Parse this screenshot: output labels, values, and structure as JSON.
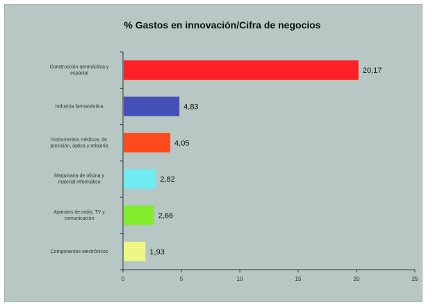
{
  "chart_data": {
    "type": "bar",
    "orientation": "horizontal",
    "title": "% Gastos en innovación/Cifra de negocios",
    "xlabel": "",
    "ylabel": "",
    "xlim": [
      0,
      25
    ],
    "xticks": [
      0,
      5,
      10,
      15,
      20,
      25
    ],
    "grid": false,
    "categories": [
      "Construcción aeronáutica y espacial",
      "Industria farmacéutica",
      "Instrumentos médicos, de precisión, óptica y relojería",
      "Maquinaria de oficina y material informático",
      "Aparatos de radio, TV y comunicación",
      "Componentes electrónicos"
    ],
    "values": [
      20.17,
      4.83,
      4.05,
      2.82,
      2.66,
      1.93
    ],
    "value_labels": [
      "20,17",
      "4,83",
      "4,05",
      "2,82",
      "2,66",
      "1,93"
    ],
    "colors": [
      "#ff1f26",
      "#4450b8",
      "#ff4a1c",
      "#6fecf2",
      "#7fed29",
      "#eef783"
    ]
  }
}
